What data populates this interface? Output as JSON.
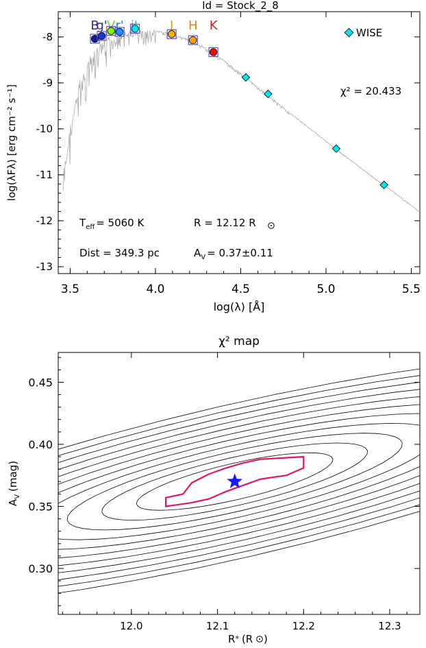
{
  "colors": {
    "model": "#a9a9a9",
    "wise": "#00e5ee",
    "contour": "#000000",
    "best_contour": "#e8145a",
    "star": "#1a1aff",
    "box": "#5a4fc8"
  },
  "chart_data": [
    {
      "type": "scatter",
      "title": "Id = Stock_2_8",
      "xlabel": "log(λ) [Å]",
      "ylabel": "log(λFλ) [erg cm⁻² s⁻¹]",
      "xlim": [
        3.43,
        5.55
      ],
      "ylim": [
        -13.15,
        -7.45
      ],
      "xticks": [
        "3.5",
        "4.0",
        "4.5",
        "5.0",
        "5.5"
      ],
      "yticks": [
        "-8",
        "-9",
        "-10",
        "-11",
        "-12",
        "-13"
      ],
      "band_labels": [
        {
          "text": "B",
          "x": 3.645,
          "color": "#3a2a8c"
        },
        {
          "text": "g'",
          "x": 3.685,
          "color": "#3a2a8c"
        },
        {
          "text": "V",
          "x": 3.74,
          "color": "#6fd12a"
        },
        {
          "text": "r'",
          "x": 3.79,
          "color": "#2a7fd0"
        },
        {
          "text": "i'",
          "x": 3.875,
          "color": "#2ab3b3"
        },
        {
          "text": "J",
          "x": 4.095,
          "color": "#d4a017"
        },
        {
          "text": "H",
          "x": 4.22,
          "color": "#d4841e"
        },
        {
          "text": "K",
          "x": 4.34,
          "color": "#d42020"
        }
      ],
      "series": [
        {
          "name": "WISE",
          "marker": "diamond",
          "points": [
            [
              4.53,
              -8.88
            ],
            [
              4.66,
              -9.24
            ],
            [
              5.06,
              -10.43
            ],
            [
              5.34,
              -11.22
            ]
          ]
        }
      ],
      "photometry": [
        {
          "band": "B",
          "x": 3.645,
          "y": -8.04,
          "color": "#1a1a8c"
        },
        {
          "band": "g'",
          "x": 3.685,
          "y": -7.98,
          "color": "#1a3acc"
        },
        {
          "band": "V",
          "x": 3.74,
          "y": -7.87,
          "color": "#7cfc00"
        },
        {
          "band": "r'",
          "x": 3.79,
          "y": -7.89,
          "color": "#1e90ff"
        },
        {
          "band": "i'",
          "x": 3.88,
          "y": -7.82,
          "color": "#00e5ee"
        },
        {
          "band": "J",
          "x": 4.095,
          "y": -7.94,
          "color": "#f4b400"
        },
        {
          "band": "H",
          "x": 4.22,
          "y": -8.07,
          "color": "#ffa500"
        },
        {
          "band": "K",
          "x": 4.34,
          "y": -8.33,
          "color": "#ff0000"
        }
      ],
      "model": [
        [
          3.46,
          -10.9
        ],
        [
          3.5,
          -9.9
        ],
        [
          3.55,
          -9.0
        ],
        [
          3.6,
          -8.5
        ],
        [
          3.65,
          -8.25
        ],
        [
          3.7,
          -8.02
        ],
        [
          3.75,
          -7.95
        ],
        [
          3.8,
          -7.9
        ],
        [
          3.85,
          -7.86
        ],
        [
          3.9,
          -7.84
        ],
        [
          4.0,
          -7.85
        ],
        [
          4.1,
          -7.93
        ],
        [
          4.2,
          -8.06
        ],
        [
          4.3,
          -8.25
        ],
        [
          4.4,
          -8.5
        ],
        [
          4.5,
          -8.78
        ],
        [
          4.6,
          -9.08
        ],
        [
          4.7,
          -9.38
        ],
        [
          4.8,
          -9.68
        ],
        [
          4.9,
          -9.97
        ],
        [
          5.0,
          -10.26
        ],
        [
          5.1,
          -10.55
        ],
        [
          5.2,
          -10.83
        ],
        [
          5.3,
          -11.11
        ],
        [
          5.4,
          -11.38
        ],
        [
          5.5,
          -11.66
        ],
        [
          5.55,
          -11.8
        ]
      ],
      "annotations": {
        "chi2": "χ² = 20.433",
        "teff_label": "T",
        "teff_sub": "eff",
        "teff_value": "= 5060 K",
        "radius": "R = 12.12 R",
        "dist": "Dist = 349.3 pc",
        "av_label": "A",
        "av_sub": "V",
        "av_value": "= 0.37±0.11"
      }
    },
    {
      "type": "contour",
      "title": "χ² map",
      "xlabel": "R",
      "xlabel_sub": "*",
      "xlabel_unit": "(R",
      "ylabel": "A",
      "ylabel_sub": "V",
      "ylabel_unit": "(mag)",
      "xlim": [
        11.915,
        12.335
      ],
      "ylim": [
        0.263,
        0.474
      ],
      "xticks": [
        "12.0",
        "12.1",
        "12.2",
        "12.3"
      ],
      "yticks": [
        "0.30",
        "0.35",
        "0.40",
        "0.45"
      ],
      "best_fit": {
        "R": 12.12,
        "Av": 0.37
      },
      "best_contour": [
        [
          12.04,
          0.357
        ],
        [
          12.06,
          0.36
        ],
        [
          12.07,
          0.369
        ],
        [
          12.09,
          0.376
        ],
        [
          12.11,
          0.381
        ],
        [
          12.13,
          0.385
        ],
        [
          12.15,
          0.388
        ],
        [
          12.2,
          0.39
        ],
        [
          12.2,
          0.381
        ],
        [
          12.18,
          0.375
        ],
        [
          12.15,
          0.372
        ],
        [
          12.13,
          0.367
        ],
        [
          12.11,
          0.362
        ],
        [
          12.09,
          0.356
        ],
        [
          12.07,
          0.353
        ],
        [
          12.04,
          0.35
        ]
      ]
    }
  ]
}
